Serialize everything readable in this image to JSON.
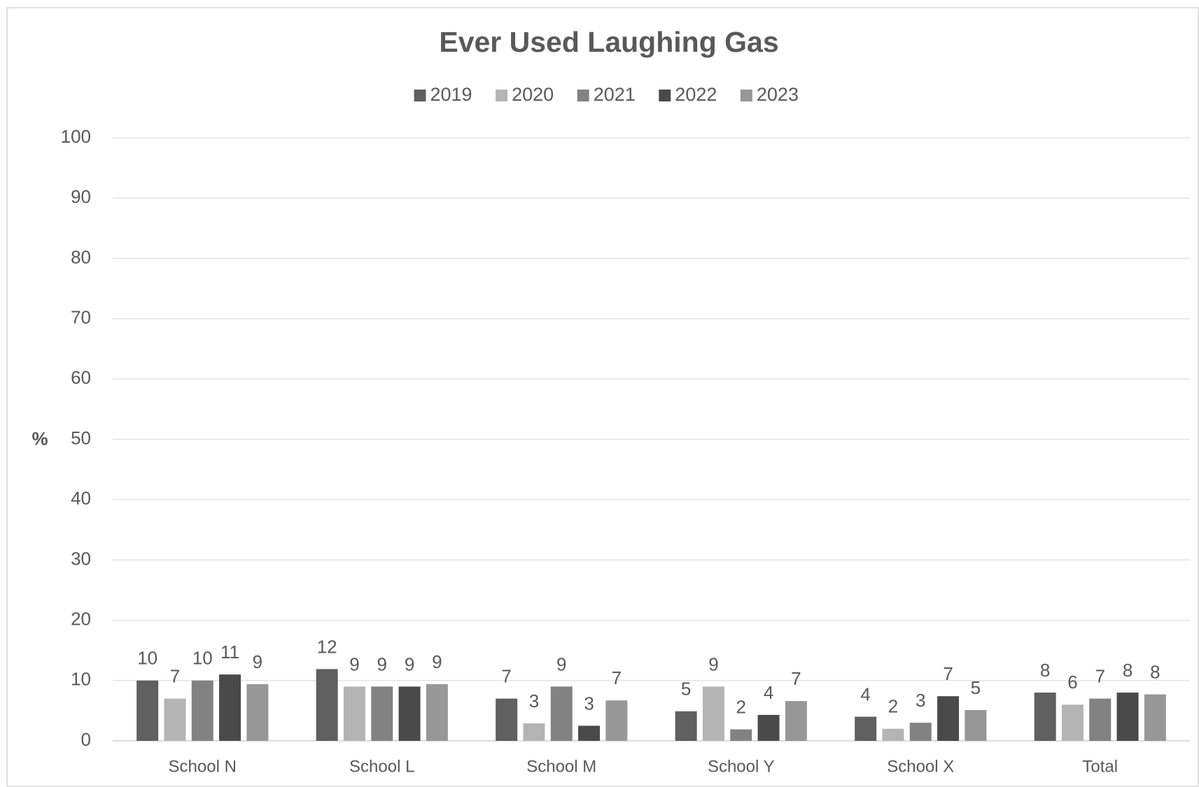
{
  "chart_data": {
    "type": "bar",
    "title": "Ever Used Laughing Gas",
    "y_label": "%",
    "categories": [
      "School N",
      "School L",
      "School M",
      "School Y",
      "School X",
      "Total"
    ],
    "series": [
      {
        "name": "2019",
        "color": "#606060",
        "values": [
          10,
          11.9,
          7,
          4.9,
          4,
          8
        ],
        "value_labels": [
          "10",
          "12",
          "7",
          "5",
          "4",
          "8"
        ]
      },
      {
        "name": "2020",
        "color": "#b4b4b4",
        "values": [
          7,
          9,
          2.9,
          9,
          2,
          6
        ],
        "value_labels": [
          "7",
          "9",
          "3",
          "9",
          "2",
          "6"
        ]
      },
      {
        "name": "2021",
        "color": "#828282",
        "values": [
          10,
          9,
          9,
          1.9,
          3,
          7
        ],
        "value_labels": [
          "10",
          "9",
          "9",
          "2",
          "3",
          "7"
        ]
      },
      {
        "name": "2022",
        "color": "#4a4a4a",
        "values": [
          11,
          9,
          2.5,
          4.3,
          7.4,
          8
        ],
        "value_labels": [
          "11",
          "9",
          "3",
          "4",
          "7",
          "8"
        ]
      },
      {
        "name": "2023",
        "color": "#979797",
        "values": [
          9.4,
          9.4,
          6.7,
          6.6,
          5.1,
          7.7
        ],
        "value_labels": [
          "9",
          "9",
          "7",
          "7",
          "5",
          "8"
        ]
      }
    ],
    "ylim": [
      0,
      100
    ],
    "yticks": [
      0,
      10,
      20,
      30,
      40,
      50,
      60,
      70,
      80,
      90,
      100
    ],
    "grid": true,
    "legend": "top"
  }
}
